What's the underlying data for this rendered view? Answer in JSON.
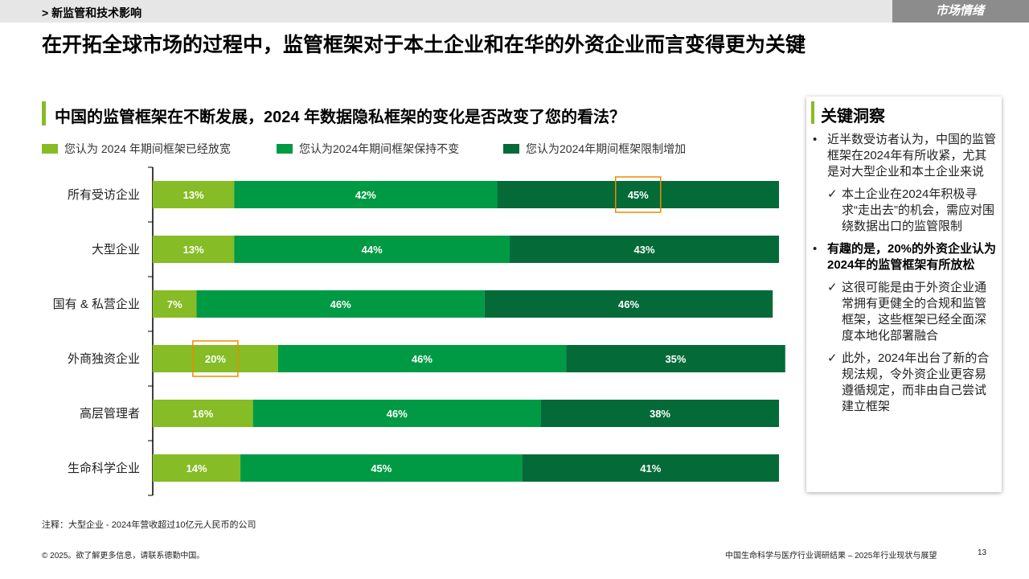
{
  "header": {
    "breadcrumb": "> 新监管和技术影响",
    "section_tag": "市场情绪",
    "headline": "在开拓全球市场的过程中，监管框架对于本土企业和在华的外资企业而言变得更为关键"
  },
  "chart_data": {
    "type": "bar",
    "orientation": "horizontal",
    "stacked": true,
    "title": "中国的监管框架在不断发展，2024 年数据隐私框架的变化是否改变了您的看法？",
    "categories": [
      "所有受访企业",
      "大型企业",
      "国有 & 私营企业",
      "外商独资企业",
      "高层管理者",
      "生命科学企业"
    ],
    "series": [
      {
        "name": "您认为 2024 年期间框架已经放宽",
        "color": "#86bc25",
        "values": [
          13,
          13,
          7,
          20,
          16,
          14
        ]
      },
      {
        "name": "您认为2024年期间框架保持不变",
        "color": "#009a44",
        "values": [
          42,
          44,
          46,
          46,
          46,
          45
        ]
      },
      {
        "name": "您认为2024年期间框架限制增加",
        "color": "#046a38",
        "values": [
          45,
          43,
          46,
          35,
          38,
          41
        ]
      }
    ],
    "value_suffix": "%",
    "highlights": [
      {
        "category": "所有受访企业",
        "series": 2
      },
      {
        "category": "外商独资企业",
        "series": 0
      }
    ],
    "highlight_color": "#ed8b00",
    "xlim": [
      0,
      100
    ]
  },
  "insight": {
    "title": "关键洞察",
    "items": [
      {
        "kind": "bullet",
        "text": "近半数受访者认为，中国的监管框架在2024年有所收紧，尤其是对大型企业和本土企业来说",
        "bold": false
      },
      {
        "kind": "check",
        "text": "本土企业在2024年积极寻求“走出去”的机会，需应对围绕数据出口的监管限制",
        "bold": false
      },
      {
        "kind": "bullet",
        "text": "有趣的是，20%的外资企业认为2024年的监管框架有所放松",
        "bold": true
      },
      {
        "kind": "check",
        "text": "这很可能是由于外资企业通常拥有更健全的合规和监管框架，这些框架已经全面深度本地化部署融合",
        "bold": false
      },
      {
        "kind": "check",
        "text": "此外，2024年出台了新的合规法规，令外资企业更容易遵循规定，而非由自己尝试建立框架",
        "bold": false
      }
    ],
    "bullet_symbol": "•",
    "check_symbol": "✓"
  },
  "footer": {
    "note": "注释：大型企业 - 2024年营收超过10亿元人民币的公司",
    "copyright": "© 2025。欲了解更多信息，请联系德勤中国。",
    "report_title": "中国生命科学与医疗行业调研结果 – 2025年行业现状与展望",
    "page": "13"
  }
}
